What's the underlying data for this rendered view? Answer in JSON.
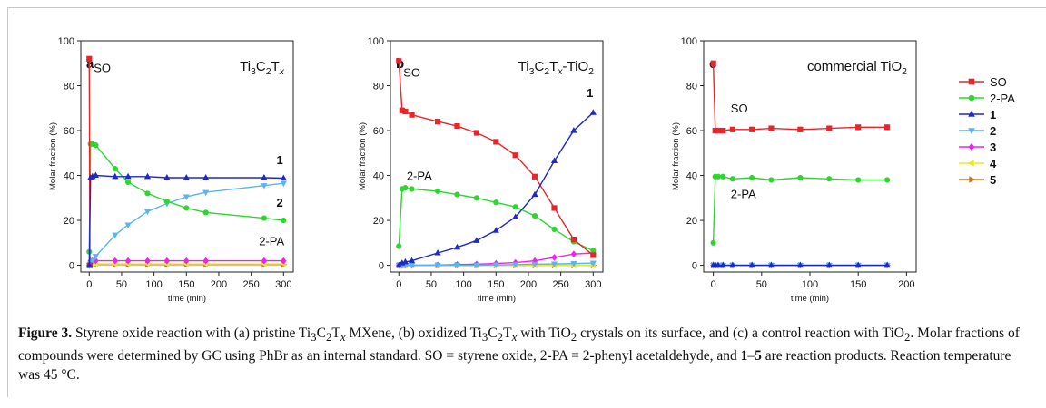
{
  "chart_data": [
    {
      "type": "line",
      "panel_label": "a",
      "material": {
        "base": "Ti",
        "s1": "3",
        "mid": "C",
        "s2": "2",
        "tail": "T",
        "s3": "x",
        "extra": "",
        "s4": ""
      },
      "xlabel": "time (min)",
      "ylabel": "Molar fraction (%)",
      "xlim": [
        -13,
        315
      ],
      "ylim": [
        -3,
        100
      ],
      "xticks": [
        0,
        50,
        100,
        150,
        200,
        250,
        300
      ],
      "yticks": [
        0,
        20,
        40,
        60,
        80,
        100
      ],
      "annotations": [
        {
          "text": "SO",
          "x": 7,
          "y": 86,
          "bold": false
        },
        {
          "text": "1",
          "x": 289,
          "y": 45,
          "bold": true
        },
        {
          "text": "2",
          "x": 289,
          "y": 26,
          "bold": true
        },
        {
          "text": "2-PA",
          "x": 262,
          "y": 9,
          "bold": false
        }
      ],
      "series": [
        {
          "key": "SO",
          "x": [
            0,
            1
          ],
          "values": [
            92,
            0
          ]
        },
        {
          "key": "2-PA",
          "x": [
            0,
            2,
            5,
            10,
            40,
            60,
            90,
            120,
            150,
            180,
            270,
            300
          ],
          "values": [
            6,
            54,
            54,
            53.5,
            43,
            37,
            32,
            28.5,
            25.5,
            23.5,
            21,
            20
          ]
        },
        {
          "key": "1",
          "x": [
            0,
            2,
            5,
            10,
            40,
            60,
            90,
            120,
            150,
            180,
            270,
            300
          ],
          "values": [
            0,
            39,
            39.5,
            40,
            39.5,
            39.5,
            39.5,
            39,
            39,
            39,
            39,
            38.8
          ]
        },
        {
          "key": "2",
          "x": [
            0,
            2,
            5,
            10,
            40,
            60,
            90,
            120,
            150,
            180,
            270,
            300
          ],
          "values": [
            0,
            1,
            2,
            4,
            13.5,
            18,
            24,
            27.5,
            30.5,
            32.5,
            35.5,
            36.5
          ]
        },
        {
          "key": "3",
          "x": [
            0,
            2,
            5,
            10,
            40,
            60,
            90,
            120,
            150,
            180,
            270,
            300
          ],
          "values": [
            0,
            2,
            2,
            2,
            2,
            2,
            2,
            2,
            2,
            2,
            2,
            2
          ]
        },
        {
          "key": "4",
          "x": [
            0,
            2,
            5,
            10,
            40,
            60,
            90,
            120,
            150,
            180,
            270,
            300
          ],
          "values": [
            0,
            0.6,
            0.6,
            0.6,
            0.6,
            0.6,
            0.6,
            0.6,
            0.6,
            0.6,
            0.6,
            0.6
          ]
        },
        {
          "key": "5",
          "x": [
            0,
            2,
            5,
            10,
            40,
            60,
            90,
            120,
            150,
            180,
            270,
            300
          ],
          "values": [
            0,
            0.3,
            0.3,
            0.3,
            0.3,
            0.3,
            0.3,
            0.3,
            0.3,
            0.3,
            0.3,
            0.3
          ]
        }
      ]
    },
    {
      "type": "line",
      "panel_label": "b",
      "material": {
        "base": "Ti",
        "s1": "3",
        "mid": "C",
        "s2": "2",
        "tail": "T",
        "s3": "x",
        "extra": "-TiO",
        "s4": "2"
      },
      "xlabel": "time (min)",
      "ylabel": "Molar fraction (%)",
      "xlim": [
        -13,
        315
      ],
      "ylim": [
        -3,
        100
      ],
      "xticks": [
        0,
        50,
        100,
        150,
        200,
        250,
        300
      ],
      "yticks": [
        0,
        20,
        40,
        60,
        80,
        100
      ],
      "annotations": [
        {
          "text": "SO",
          "x": 7,
          "y": 84,
          "bold": false
        },
        {
          "text": "1",
          "x": 290,
          "y": 75,
          "bold": true
        },
        {
          "text": "2-PA",
          "x": 12,
          "y": 38,
          "bold": false
        }
      ],
      "series": [
        {
          "key": "SO",
          "x": [
            0,
            5,
            10,
            20,
            60,
            90,
            120,
            150,
            180,
            210,
            240,
            270,
            300
          ],
          "values": [
            91,
            69,
            68.5,
            67,
            64,
            62,
            59,
            55,
            49,
            39.5,
            25.5,
            11.5,
            4.5
          ]
        },
        {
          "key": "2-PA",
          "x": [
            0,
            5,
            10,
            20,
            60,
            90,
            120,
            150,
            180,
            210,
            240,
            270,
            300
          ],
          "values": [
            8.5,
            34,
            34.5,
            34,
            33,
            31.5,
            30,
            28,
            26,
            22,
            16,
            10.5,
            6.5
          ]
        },
        {
          "key": "1",
          "x": [
            0,
            5,
            10,
            20,
            60,
            90,
            120,
            150,
            180,
            210,
            240,
            270,
            300
          ],
          "values": [
            0,
            1,
            1.5,
            2,
            5.5,
            8,
            11,
            15.5,
            21.5,
            31.5,
            46.5,
            60,
            68
          ]
        },
        {
          "key": "2",
          "x": [
            0,
            5,
            10,
            20,
            60,
            90,
            120,
            150,
            180,
            210,
            240,
            270,
            300
          ],
          "values": [
            0,
            0,
            0,
            0,
            0,
            0,
            0,
            0.2,
            0.3,
            0.5,
            0.6,
            0.8,
            1
          ]
        },
        {
          "key": "3",
          "x": [
            0,
            5,
            10,
            20,
            60,
            90,
            120,
            150,
            180,
            210,
            240,
            270,
            300
          ],
          "values": [
            0,
            0,
            0,
            0,
            0.1,
            0.3,
            0.5,
            0.8,
            1.2,
            2,
            3.5,
            5,
            5.5
          ]
        },
        {
          "key": "4",
          "x": [
            0,
            5,
            10,
            20,
            60,
            90,
            120,
            150,
            180,
            210,
            240,
            270,
            300
          ],
          "values": [
            0,
            0,
            0,
            0,
            0,
            0,
            0,
            0,
            0,
            0,
            0,
            0,
            0
          ]
        },
        {
          "key": "5",
          "x": [
            0,
            5,
            10,
            20,
            60,
            90,
            120,
            150,
            180,
            210,
            240,
            270,
            300
          ],
          "values": [
            0,
            0,
            0,
            0,
            0,
            0,
            0,
            0,
            0,
            0,
            0,
            0,
            0
          ]
        }
      ]
    },
    {
      "type": "line",
      "panel_label": "c",
      "material": {
        "base": "commercial TiO",
        "s1": "2",
        "mid": "",
        "s2": "",
        "tail": "",
        "s3": "",
        "extra": "",
        "s4": ""
      },
      "xlabel": "time (min)",
      "ylabel": "Molar fraction (%)",
      "xlim": [
        -10,
        210
      ],
      "ylim": [
        -3,
        100
      ],
      "xticks": [
        0,
        50,
        100,
        150,
        200
      ],
      "yticks": [
        0,
        20,
        40,
        60,
        80,
        100
      ],
      "annotations": [
        {
          "text": "SO",
          "x": 18,
          "y": 68,
          "bold": false
        },
        {
          "text": "2-PA",
          "x": 18,
          "y": 30,
          "bold": false
        }
      ],
      "series": [
        {
          "key": "SO",
          "x": [
            0,
            2,
            5,
            10,
            20,
            40,
            60,
            90,
            120,
            150,
            180
          ],
          "values": [
            90,
            60,
            60,
            60,
            60.5,
            60.5,
            61,
            60.5,
            61,
            61.5,
            61.5
          ]
        },
        {
          "key": "2-PA",
          "x": [
            0,
            2,
            5,
            10,
            20,
            40,
            60,
            90,
            120,
            150,
            180
          ],
          "values": [
            10,
            39.5,
            39.5,
            39.5,
            38.5,
            39,
            38,
            39,
            38.5,
            38,
            38
          ]
        },
        {
          "key": "1",
          "x": [
            0,
            2,
            5,
            10,
            20,
            40,
            60,
            90,
            120,
            150,
            180
          ],
          "values": [
            0,
            0,
            0,
            0,
            0,
            0,
            0,
            0,
            0,
            0,
            0
          ]
        },
        {
          "key": "2",
          "x": [
            0,
            2,
            5,
            10,
            20,
            40,
            60,
            90,
            120,
            150,
            180
          ],
          "values": [
            0,
            0,
            0,
            0,
            0,
            0,
            0,
            0,
            0,
            0,
            0
          ]
        },
        {
          "key": "3",
          "x": [
            0,
            2,
            5,
            10,
            20,
            40,
            60,
            90,
            120,
            150,
            180
          ],
          "values": [
            0,
            0,
            0,
            0,
            0,
            0,
            0,
            0,
            0,
            0,
            0
          ]
        },
        {
          "key": "4",
          "x": [
            0,
            2,
            5,
            10,
            20,
            40,
            60,
            90,
            120,
            150,
            180
          ],
          "values": [
            0,
            0,
            0,
            0,
            0,
            0,
            0,
            0,
            0,
            0,
            0
          ]
        },
        {
          "key": "5",
          "x": [
            0,
            2,
            5,
            10,
            20,
            40,
            60,
            90,
            120,
            150,
            180
          ],
          "values": [
            0,
            0,
            0,
            0,
            0,
            0,
            0,
            0,
            0,
            0,
            0
          ]
        }
      ]
    }
  ],
  "legend": {
    "placement": "right",
    "items": [
      {
        "key": "SO",
        "label": "SO",
        "bold": false,
        "color": "#e8262a",
        "marker": "square"
      },
      {
        "key": "2-PA",
        "label": "2-PA",
        "bold": false,
        "color": "#2fd62f",
        "marker": "circle"
      },
      {
        "key": "1",
        "label": "1",
        "bold": true,
        "color": "#1f28c8",
        "marker": "triangle-up"
      },
      {
        "key": "2",
        "label": "2",
        "bold": true,
        "color": "#5ab4ee",
        "marker": "triangle-down"
      },
      {
        "key": "3",
        "label": "3",
        "bold": true,
        "color": "#ee22ee",
        "marker": "diamond"
      },
      {
        "key": "4",
        "label": "4",
        "bold": true,
        "color": "#e8e82a",
        "marker": "triangle-left"
      },
      {
        "key": "5",
        "label": "5",
        "bold": true,
        "color": "#c87818",
        "marker": "triangle-right"
      }
    ]
  },
  "caption": {
    "figure_label": "Figure 3.",
    "p1": " Styrene oxide reaction with (a) pristine Ti",
    "p1_s1": "3",
    "p1_c": "C",
    "p1_s2": "2",
    "p1_t": "T",
    "p1_x": "x",
    "p2": " MXene, (b) oxidized Ti",
    "p2_s1": "3",
    "p2_c": "C",
    "p2_s2": "2",
    "p2_t": "T",
    "p2_x": "x",
    "p3": " with TiO",
    "p3_s": "2",
    "p4": " crystals on its surface, and (c) a control reaction with TiO",
    "p4_s": "2",
    "p5": ". Molar fractions of compounds were determined by GC using PhBr as an internal standard. SO = styrene oxide, 2-PA = 2-phenyl acetaldehyde, and ",
    "p5_b": "1",
    "p5_dash": "–",
    "p5_b2": "5",
    "p6": " are reaction products. Reaction temperature was 45 °C."
  }
}
